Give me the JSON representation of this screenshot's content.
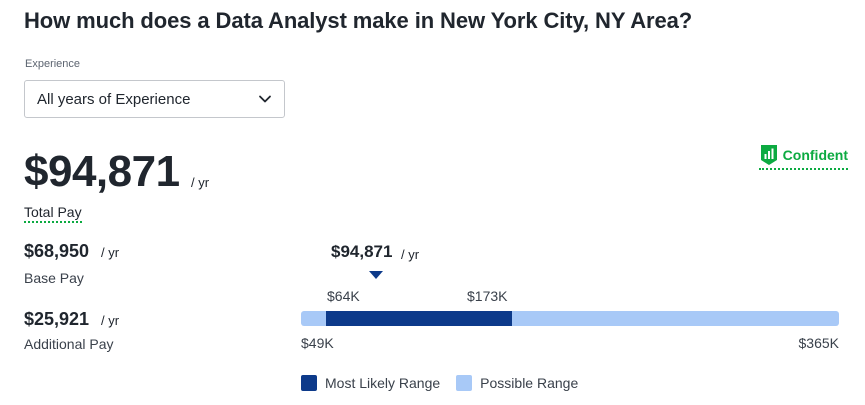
{
  "title": "How much does a Data Analyst make in New York City, NY Area?",
  "experience": {
    "label": "Experience",
    "selected": "All years of Experience"
  },
  "confidence": {
    "label": "Confident",
    "icon": "confidence-bars-icon",
    "color": "#0caa41"
  },
  "total_pay": {
    "amount": "$94,871",
    "unit": "/ yr",
    "label": "Total Pay"
  },
  "base_pay": {
    "amount": "$68,950",
    "unit": "/ yr",
    "label": "Base Pay"
  },
  "additional_pay": {
    "amount": "$25,921",
    "unit": "/ yr",
    "label": "Additional Pay"
  },
  "range": {
    "median": "$94,871",
    "median_unit": "/ yr",
    "likely_low": "$64K",
    "likely_high": "$173K",
    "possible_low": "$49K",
    "possible_high": "$365K",
    "most_likely_color": "#0d3a8a",
    "possible_color": "#a8c9f7"
  },
  "legend": {
    "most_likely": "Most Likely Range",
    "possible": "Possible Range"
  }
}
